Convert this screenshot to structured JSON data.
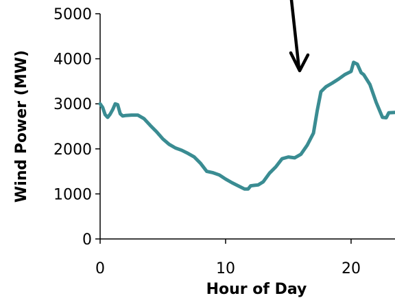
{
  "chart_data": {
    "type": "line",
    "title": "",
    "xlabel": "Hour of Day",
    "ylabel": "Wind Power (MW)",
    "xlim": [
      0,
      23.5
    ],
    "ylim": [
      0,
      5000
    ],
    "x_ticks": [
      0,
      10,
      20
    ],
    "x_tick_labels": [
      "0",
      "10",
      "20"
    ],
    "y_ticks": [
      0,
      1000,
      2000,
      3000,
      4000,
      5000
    ],
    "y_tick_labels": [
      "0",
      "1000",
      "2000",
      "3000",
      "4000",
      "5000"
    ],
    "grid": false,
    "legend": "none",
    "series": [
      {
        "color": "#3a8c92",
        "x": [
          0,
          0.2,
          0.4,
          0.6,
          0.8,
          1.0,
          1.2,
          1.4,
          1.6,
          1.8,
          2.0,
          2.5,
          3.0,
          3.5,
          4.0,
          4.5,
          5.0,
          5.5,
          6.0,
          6.5,
          7.0,
          7.5,
          8.0,
          8.5,
          9.0,
          9.5,
          10.0,
          10.5,
          11.0,
          11.5,
          11.8,
          12.0,
          12.3,
          12.6,
          13.0,
          13.5,
          14.0,
          14.5,
          15.0,
          15.5,
          16.0,
          16.5,
          17.0,
          17.3,
          17.6,
          18.0,
          18.5,
          19.0,
          19.5,
          20.0,
          20.2,
          20.5,
          20.8,
          21.0,
          21.5,
          22.0,
          22.5,
          22.8,
          23.0,
          23.5
        ],
        "y": [
          3000,
          2920,
          2760,
          2700,
          2770,
          2870,
          3000,
          2980,
          2780,
          2730,
          2740,
          2750,
          2750,
          2670,
          2520,
          2380,
          2220,
          2100,
          2020,
          1970,
          1900,
          1820,
          1680,
          1500,
          1470,
          1420,
          1330,
          1250,
          1180,
          1110,
          1110,
          1180,
          1190,
          1200,
          1270,
          1460,
          1600,
          1780,
          1820,
          1800,
          1880,
          2080,
          2350,
          2850,
          3270,
          3380,
          3460,
          3550,
          3650,
          3720,
          3920,
          3880,
          3690,
          3650,
          3430,
          3030,
          2700,
          2690,
          2800,
          2810
        ]
      }
    ]
  }
}
